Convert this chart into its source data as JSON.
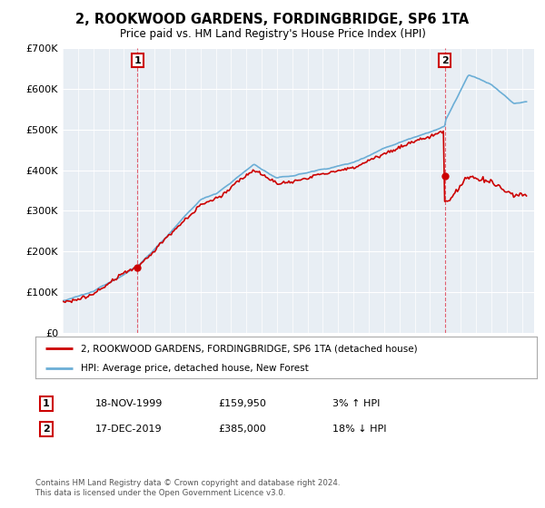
{
  "title": "2, ROOKWOOD GARDENS, FORDINGBRIDGE, SP6 1TA",
  "subtitle": "Price paid vs. HM Land Registry's House Price Index (HPI)",
  "ylim": [
    0,
    700000
  ],
  "xlim_start": 1995.0,
  "xlim_end": 2025.5,
  "purchase1_year": 1999.88,
  "purchase1_price": 159950,
  "purchase2_year": 2019.96,
  "purchase2_price": 385000,
  "legend_line1": "2, ROOKWOOD GARDENS, FORDINGBRIDGE, SP6 1TA (detached house)",
  "legend_line2": "HPI: Average price, detached house, New Forest",
  "table_row1": [
    "1",
    "18-NOV-1999",
    "£159,950",
    "3% ↑ HPI"
  ],
  "table_row2": [
    "2",
    "17-DEC-2019",
    "£385,000",
    "18% ↓ HPI"
  ],
  "footnote": "Contains HM Land Registry data © Crown copyright and database right 2024.\nThis data is licensed under the Open Government Licence v3.0.",
  "hpi_color": "#6baed6",
  "price_color": "#cc0000",
  "marker_color": "#cc0000",
  "chart_bg_color": "#e8eef4",
  "background_color": "#ffffff",
  "grid_color": "#ffffff",
  "vline_color": "#e06070"
}
